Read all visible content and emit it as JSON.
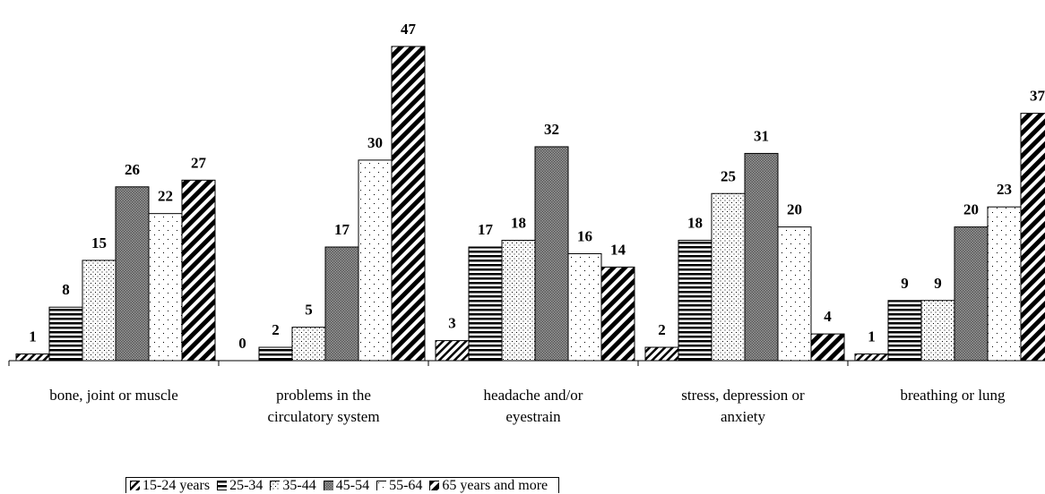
{
  "chart_data": {
    "type": "bar",
    "categories": [
      "bone, joint or muscle",
      "problems in the circulatory system",
      "headache and/or eyestrain",
      "stress, depression or anxiety",
      "breathing or lung"
    ],
    "series": [
      {
        "name": "15-24 years",
        "values": [
          1,
          0,
          3,
          2,
          1
        ]
      },
      {
        "name": "25-34",
        "values": [
          8,
          2,
          17,
          18,
          9
        ]
      },
      {
        "name": "35-44",
        "values": [
          15,
          5,
          18,
          25,
          9
        ]
      },
      {
        "name": "45-54",
        "values": [
          26,
          17,
          32,
          31,
          20
        ]
      },
      {
        "name": "55-64",
        "values": [
          22,
          30,
          16,
          20,
          23
        ]
      },
      {
        "name": "65 years and more",
        "values": [
          27,
          47,
          14,
          4,
          37
        ]
      }
    ],
    "ylim": [
      0,
      50
    ]
  }
}
